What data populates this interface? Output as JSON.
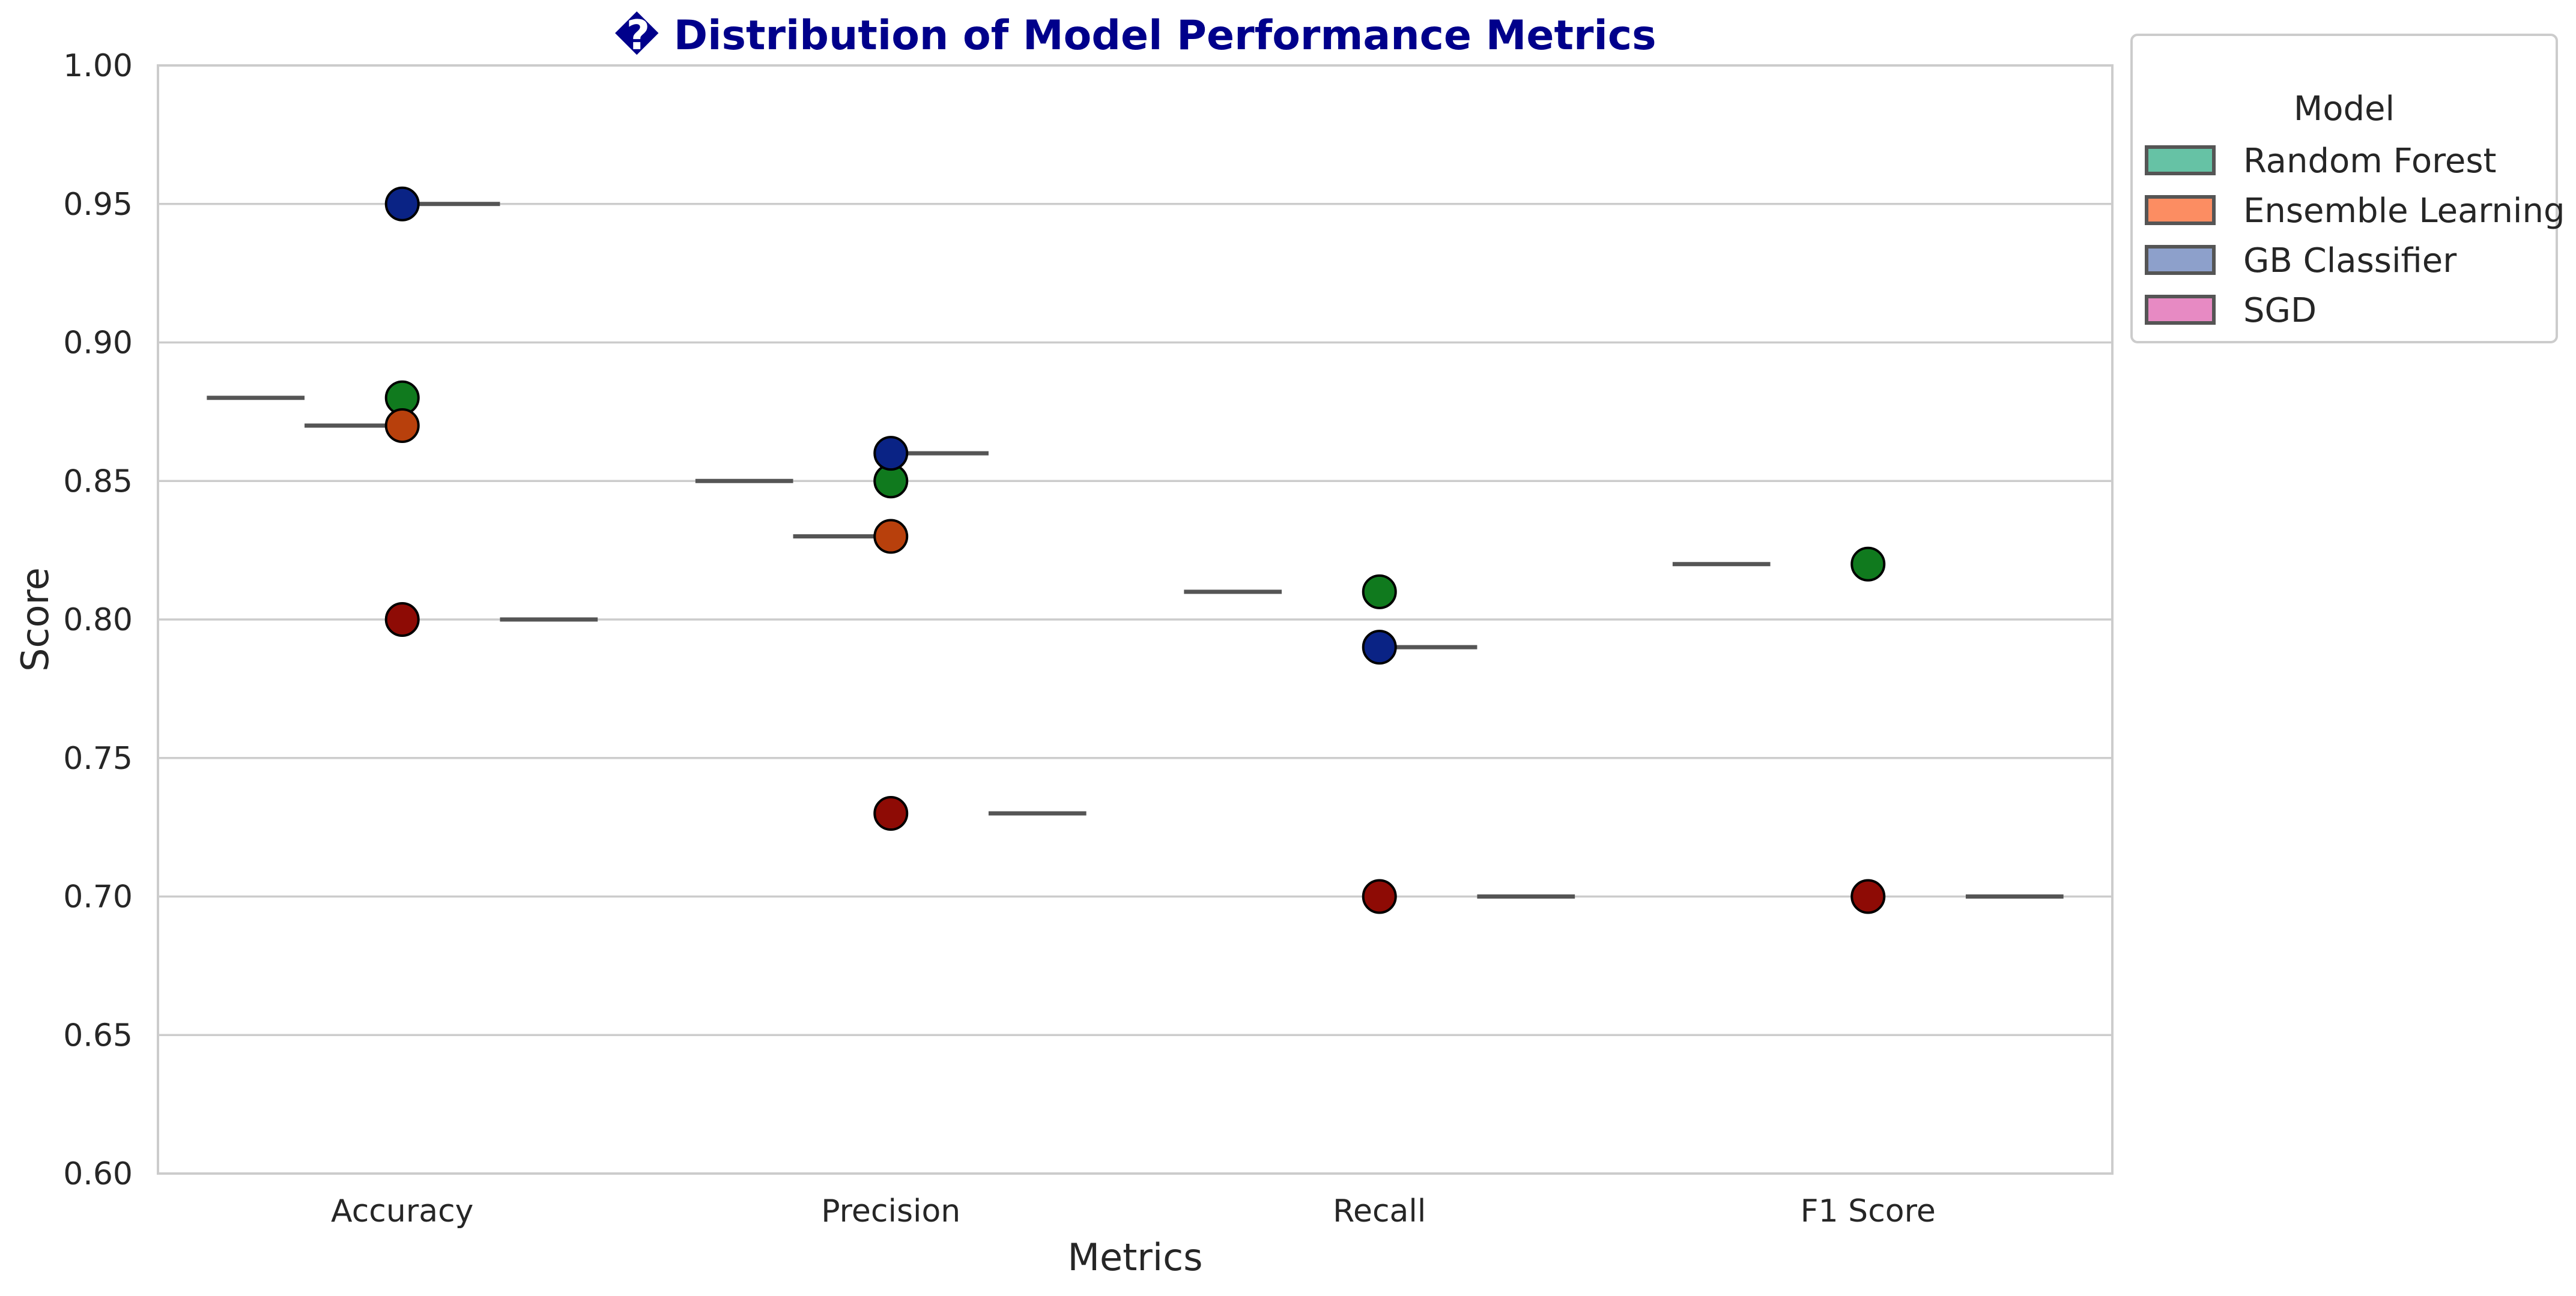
{
  "chart_data": {
    "type": "scatter",
    "title": "� Distribution of Model Performance Metrics",
    "xlabel": "Metrics",
    "ylabel": "Score",
    "ylim": [
      0.6,
      1.0
    ],
    "y_ticks": [
      "0.60",
      "0.65",
      "0.70",
      "0.75",
      "0.80",
      "0.85",
      "0.90",
      "0.95",
      "1.00"
    ],
    "grid": "horizontal",
    "legend_title": "Model",
    "legend_position": "outside-top-right",
    "categories": [
      "Accuracy",
      "Precision",
      "Recall",
      "F1 Score"
    ],
    "series": [
      {
        "name": "Random Forest",
        "legend_color": "#66C2A5",
        "point_color": "#107A1E",
        "values": [
          0.88,
          0.85,
          0.81,
          0.82
        ]
      },
      {
        "name": "Ensemble Learning",
        "legend_color": "#FC8D62",
        "point_color": "#B8400C",
        "values": [
          0.87,
          0.83,
          null,
          null
        ]
      },
      {
        "name": "GB Classifier",
        "legend_color": "#8DA0CB",
        "point_color": "#0A2385",
        "values": [
          0.95,
          0.86,
          0.79,
          null
        ]
      },
      {
        "name": "SGD",
        "legend_color": "#E78AC3",
        "point_color": "#8E0B05",
        "values": [
          0.8,
          0.73,
          0.7,
          0.7
        ]
      }
    ]
  }
}
